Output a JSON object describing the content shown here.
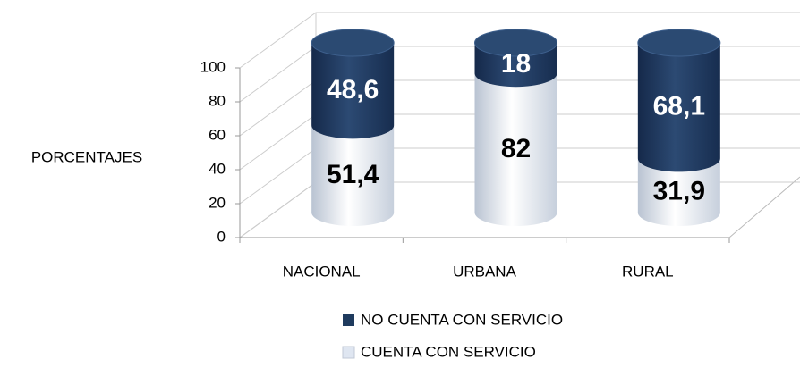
{
  "chart_data": {
    "type": "bar3d_stacked_cylinder",
    "y_label": "PORCENTAJES",
    "categories": [
      "NACIONAL",
      "URBANA",
      "RURAL"
    ],
    "series": [
      {
        "name": "CUENTA CON SERVICIO",
        "color": "#dfe6f1",
        "values": [
          51.4,
          82,
          31.9
        ],
        "value_labels": [
          "51,4",
          "82",
          "31,9"
        ]
      },
      {
        "name": "NO CUENTA CON SERVICIO",
        "color": "#1f3b5e",
        "values": [
          48.6,
          18,
          68.1
        ],
        "value_labels": [
          "48,6",
          "18",
          "68,1"
        ]
      }
    ],
    "ylim": [
      0,
      100
    ],
    "yticks": [
      0,
      20,
      40,
      60,
      80,
      100
    ],
    "grid": true
  }
}
